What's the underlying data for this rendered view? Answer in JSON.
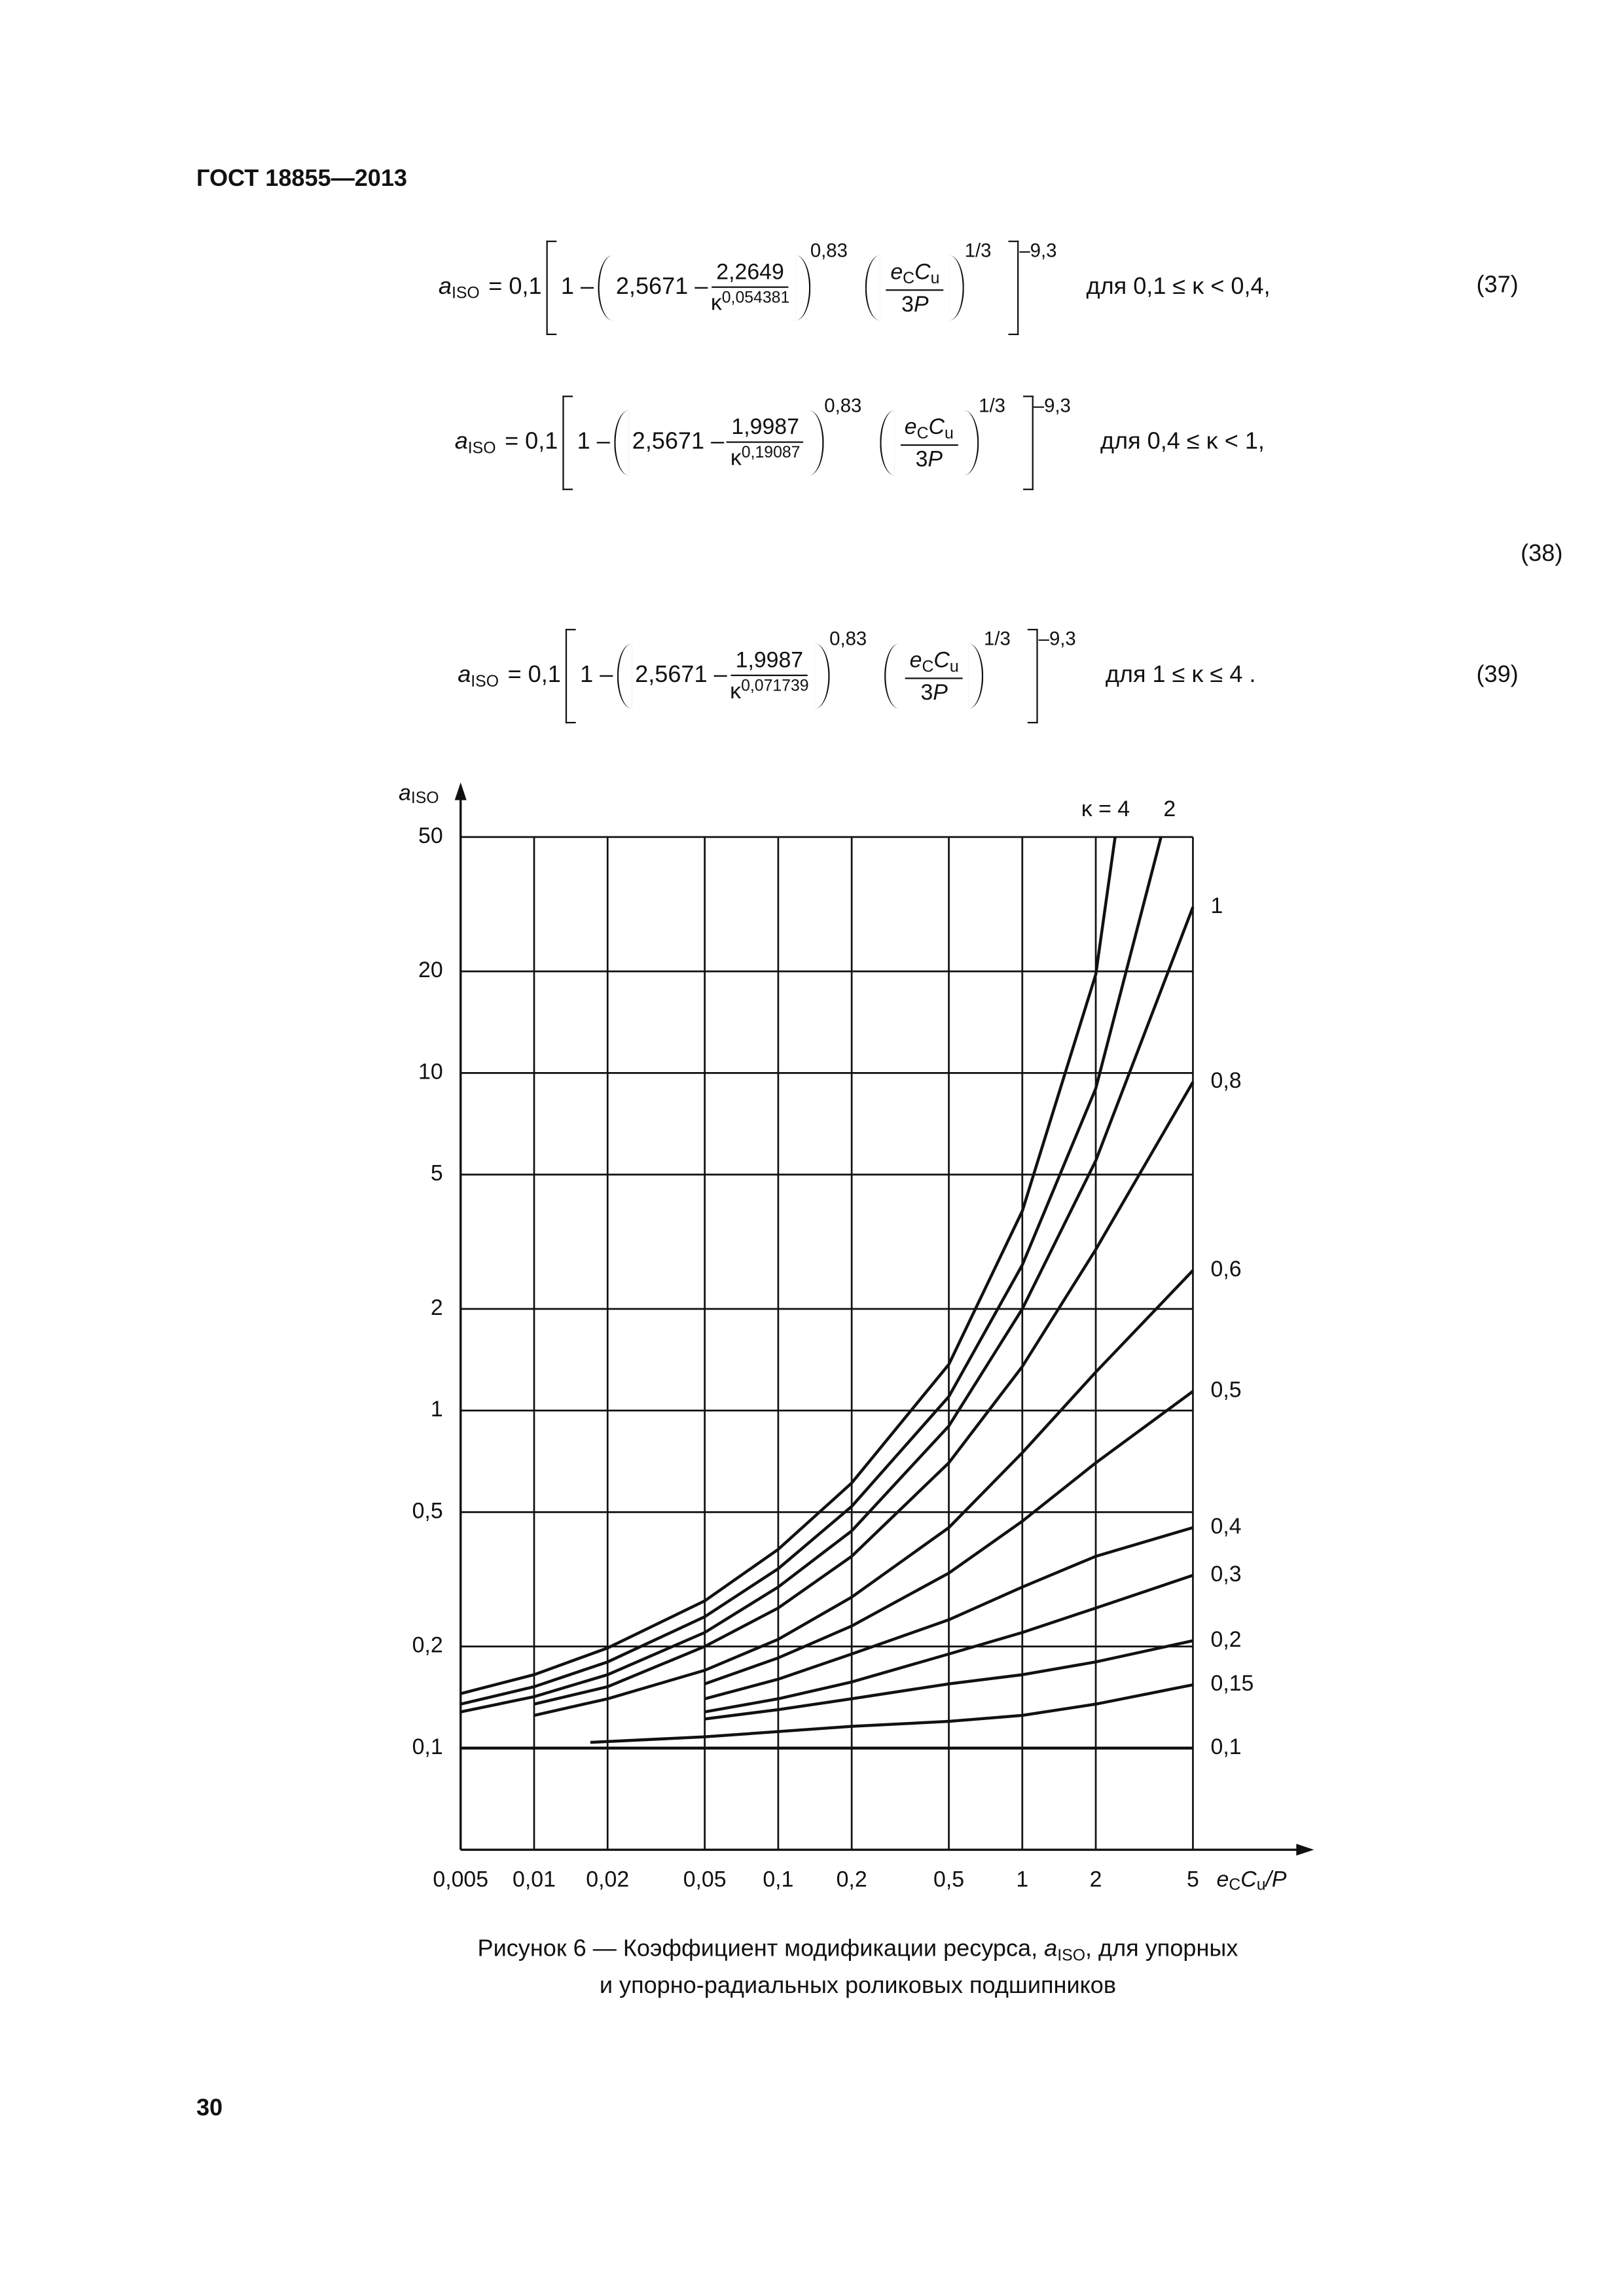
{
  "header": "ГОСТ 18855—2013",
  "formulas": [
    {
      "lhs": "a",
      "lhs_sub": "ISO",
      "eq": "= 0,1",
      "one": "1 –",
      "base": "2,5671 –",
      "num": "2,2649",
      "kappa": "κ",
      "kappa_exp": "0,054381",
      "exp1": "0,83",
      "e": "e",
      "e_sub": "C",
      "c": "C",
      "c_sub": "u",
      "den_3": "3",
      "den_p": "P",
      "exp2": "1/3",
      "exp3": "–9,3",
      "condition": "для 0,1 ≤ κ < 0,4,",
      "number": "(37)"
    },
    {
      "lhs": "a",
      "lhs_sub": "ISO",
      "eq": "= 0,1",
      "one": "1 –",
      "base": "2,5671 –",
      "num": "1,9987",
      "kappa": "κ",
      "kappa_exp": "0,19087",
      "exp1": "0,83",
      "e": "e",
      "e_sub": "C",
      "c": "C",
      "c_sub": "u",
      "den_3": "3",
      "den_p": "P",
      "exp2": "1/3",
      "exp3": "–9,3",
      "condition": "для 0,4 ≤ κ < 1,",
      "number": "(38)"
    },
    {
      "lhs": "a",
      "lhs_sub": "ISO",
      "eq": "= 0,1",
      "one": "1 –",
      "base": "2,5671 –",
      "num": "1,9987",
      "kappa": "κ",
      "kappa_exp": "0,071739",
      "exp1": "0,83",
      "e": "e",
      "e_sub": "C",
      "c": "C",
      "c_sub": "u",
      "den_3": "3",
      "den_p": "P",
      "exp2": "1/3",
      "exp3": "–9,3",
      "condition": "для 1 ≤ κ ≤ 4 .",
      "number": "(39)"
    }
  ],
  "chart_data": {
    "type": "line",
    "log_x": true,
    "log_y": true,
    "grid": true,
    "line_color": "#111111",
    "y_label": {
      "a": "a",
      "sub": "ISO"
    },
    "x_label": {
      "e": "e",
      "e_sub": "C",
      "c": "C",
      "c_sub": "u",
      "rest": "/P"
    },
    "xlim": [
      0.005,
      5
    ],
    "ylim": [
      0.05,
      50
    ],
    "xticks": [
      {
        "value": 0.005,
        "label": "0,005"
      },
      {
        "value": 0.01,
        "label": "0,01"
      },
      {
        "value": 0.02,
        "label": "0,02"
      },
      {
        "value": 0.05,
        "label": "0,05"
      },
      {
        "value": 0.1,
        "label": "0,1"
      },
      {
        "value": 0.2,
        "label": "0,2"
      },
      {
        "value": 0.5,
        "label": "0,5"
      },
      1,
      2,
      5
    ],
    "yticks": [
      {
        "value": 0.1,
        "label": "0,1"
      },
      {
        "value": 0.2,
        "label": "0,2"
      },
      {
        "value": 0.5,
        "label": "0,5"
      },
      1,
      2,
      5,
      10,
      20,
      50
    ],
    "series": [
      {
        "name": "κ = 4",
        "x": [
          0.005,
          0.01,
          0.02,
          0.05,
          0.1,
          0.2,
          0.5,
          1,
          2,
          2.4
        ],
        "values": [
          0.145,
          0.165,
          0.198,
          0.273,
          0.388,
          0.61,
          1.37,
          3.9,
          19.6,
          50
        ]
      },
      {
        "name": "2",
        "x": [
          0.005,
          0.01,
          0.02,
          0.05,
          0.1,
          0.2,
          0.5,
          1,
          2,
          3.7
        ],
        "values": [
          0.135,
          0.152,
          0.18,
          0.245,
          0.34,
          0.52,
          1.1,
          2.7,
          9,
          50
        ]
      },
      {
        "name": "1",
        "x": [
          0.005,
          0.01,
          0.02,
          0.05,
          0.1,
          0.2,
          0.5,
          1,
          2,
          5
        ],
        "values": [
          0.128,
          0.142,
          0.165,
          0.22,
          0.3,
          0.44,
          0.9,
          2,
          5.5,
          31
        ]
      },
      {
        "name": "0,8",
        "x": [
          0.01,
          0.02,
          0.05,
          0.1,
          0.2,
          0.5,
          1,
          2,
          5
        ],
        "values": [
          0.135,
          0.152,
          0.2,
          0.26,
          0.37,
          0.7,
          1.35,
          3,
          9.4
        ]
      },
      {
        "name": "0,6",
        "x": [
          0.01,
          0.02,
          0.05,
          0.1,
          0.2,
          0.5,
          1,
          2,
          5
        ],
        "values": [
          0.125,
          0.14,
          0.17,
          0.21,
          0.28,
          0.45,
          0.75,
          1.3,
          2.6
        ]
      },
      {
        "name": "0,5",
        "x": [
          0.05,
          0.1,
          0.2,
          0.5,
          1,
          2,
          5
        ],
        "values": [
          0.155,
          0.185,
          0.23,
          0.33,
          0.47,
          0.7,
          1.14
        ]
      },
      {
        "name": "0,4",
        "x": [
          0.05,
          0.1,
          0.2,
          0.5,
          1,
          2,
          5
        ],
        "values": [
          0.14,
          0.16,
          0.19,
          0.24,
          0.3,
          0.37,
          0.45
        ]
      },
      {
        "name": "0,3",
        "x": [
          0.05,
          0.1,
          0.2,
          0.5,
          1,
          2,
          5
        ],
        "values": [
          0.128,
          0.14,
          0.157,
          0.19,
          0.22,
          0.26,
          0.325
        ]
      },
      {
        "name": "0,2",
        "x": [
          0.05,
          0.1,
          0.2,
          0.5,
          1,
          2,
          5
        ],
        "values": [
          0.122,
          0.13,
          0.14,
          0.155,
          0.165,
          0.18,
          0.208
        ]
      },
      {
        "name": "0,15",
        "x": [
          0.017,
          0.05,
          0.2,
          0.5,
          1,
          2,
          5
        ],
        "values": [
          0.104,
          0.108,
          0.116,
          0.12,
          0.125,
          0.135,
          0.154
        ]
      },
      {
        "name": "0,1",
        "x": [
          0.005,
          5
        ],
        "values": [
          0.1,
          0.1
        ]
      }
    ]
  },
  "caption": {
    "start": "Рисунок 6 — Коэффициент модификации ресурса, ",
    "a": "a",
    "sub": "ISO",
    "end": ", для упорных",
    "line2": "и упорно-радиальных роликовых подшипников"
  },
  "page_number": "30"
}
